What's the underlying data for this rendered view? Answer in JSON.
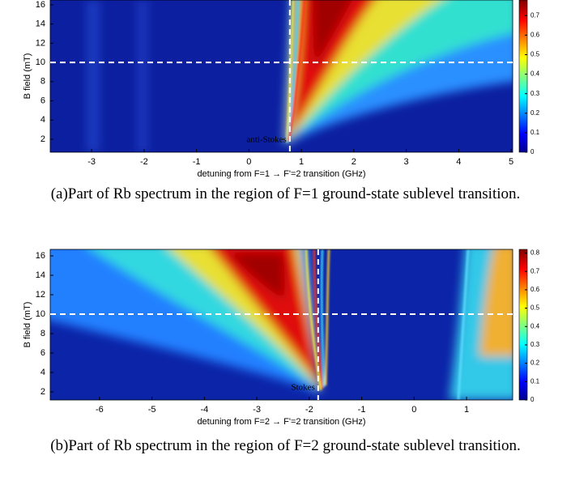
{
  "chart_data": [
    {
      "type": "heatmap",
      "xlabel": "detuning from F=1 → F'=2 transition (GHz)",
      "ylabel": "B field (mT)",
      "xlim": [
        -3.79,
        5.03
      ],
      "xticks": [
        -3,
        -2,
        -1,
        0,
        1,
        2,
        3,
        4,
        5
      ],
      "ylim": [
        0.65,
        16.5
      ],
      "yticks": [
        2,
        4,
        6,
        8,
        10,
        12,
        14,
        16
      ],
      "clim": [
        0,
        0.78
      ],
      "cticks": [
        0,
        0.1,
        0.2,
        0.3,
        0.4,
        0.5,
        0.6,
        0.7
      ],
      "hline": 10,
      "vline": 0.78,
      "annotation": "anti-Stokes",
      "caption": "(a)Part of Rb spectrum in the region of F=1 ground-state sublevel transition."
    },
    {
      "type": "heatmap",
      "xlabel": "detuning from F=2 → F'=2 transition (GHz)",
      "ylabel": "B field (mT)",
      "xlim": [
        -6.94,
        1.88
      ],
      "xticks": [
        -6,
        -5,
        -4,
        -3,
        -2,
        -1,
        0,
        1
      ],
      "ylim": [
        1.17,
        16.67
      ],
      "yticks": [
        2,
        4,
        6,
        8,
        10,
        12,
        14,
        16
      ],
      "clim": [
        0,
        0.82
      ],
      "cticks": [
        0,
        0.1,
        0.2,
        0.3,
        0.4,
        0.5,
        0.6,
        0.7,
        0.8
      ],
      "hline": 10,
      "vline": -1.83,
      "annotation": "Stokes",
      "caption": "(b)Part of Rb spectrum in the region of F=2 ground-state sublevel transition."
    }
  ]
}
